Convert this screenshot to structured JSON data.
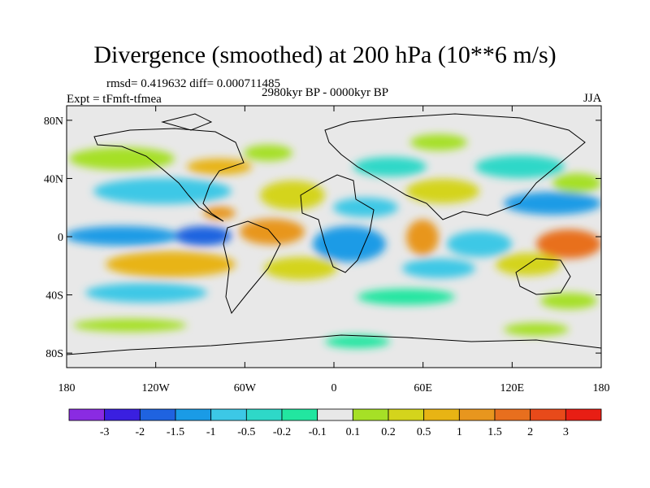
{
  "title": "Divergence (smoothed) at 200 hPa (10**6 m/s)",
  "stats_text": "rmsd= 0.419632 diff= 0.000711485",
  "experiment_text": "Expt = tFmft-tfmea",
  "period_text": "2980kyr BP - 0000kyr BP",
  "season_text": "JJA",
  "y_ticks": [
    {
      "label": "80N",
      "lat": 80
    },
    {
      "label": "40N",
      "lat": 40
    },
    {
      "label": "0",
      "lat": 0
    },
    {
      "label": "40S",
      "lat": -40
    },
    {
      "label": "80S",
      "lat": -80
    }
  ],
  "x_ticks": [
    {
      "label": "180",
      "lon": -180
    },
    {
      "label": "120W",
      "lon": -120
    },
    {
      "label": "60W",
      "lon": -60
    },
    {
      "label": "0",
      "lon": 0
    },
    {
      "label": "60E",
      "lon": 60
    },
    {
      "label": "120E",
      "lon": 120
    },
    {
      "label": "180",
      "lon": 180
    }
  ],
  "colorbar": {
    "colors": [
      "#8a2be2",
      "#3a1fe0",
      "#1f63e0",
      "#1a9be6",
      "#3cc8e6",
      "#2ed8c8",
      "#22e6a0",
      "#e8e8e8",
      "#a6e026",
      "#d4d41c",
      "#e8b414",
      "#e8961e",
      "#e86f1e",
      "#e84a1a",
      "#e81e14"
    ],
    "labels": [
      "-3",
      "-2",
      "-1.5",
      "-1",
      "-0.5",
      "-0.2",
      "-0.1",
      "0.1",
      "0.2",
      "0.5",
      "1",
      "1.5",
      "2",
      "3"
    ]
  },
  "map_view": {
    "lon_min": -180,
    "lon_max": 180,
    "lat_min": -90,
    "lat_max": 90
  }
}
